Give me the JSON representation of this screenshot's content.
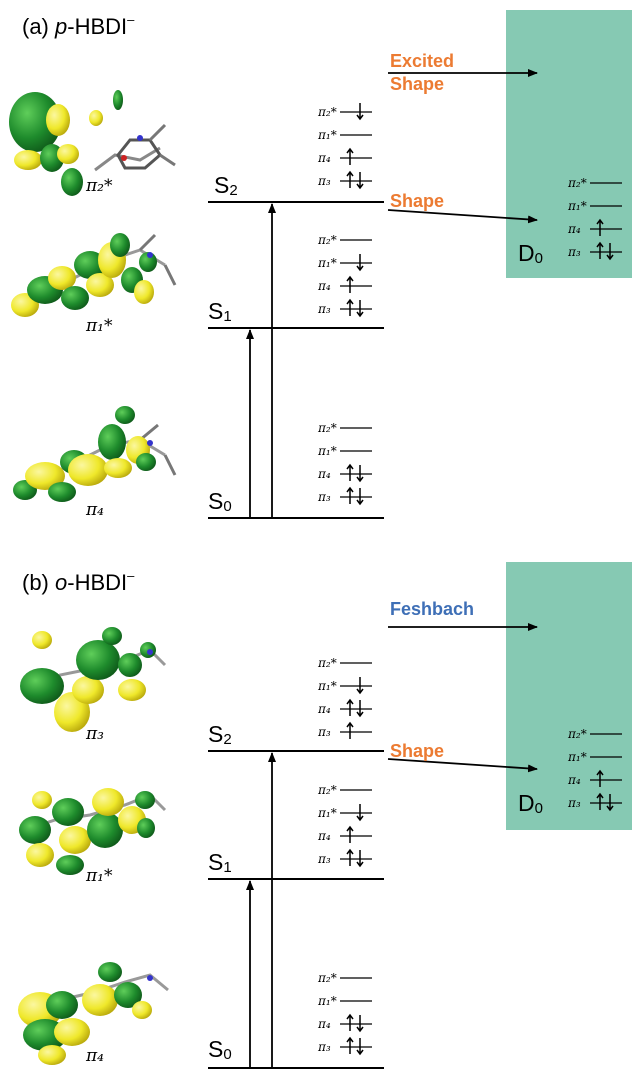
{
  "panel_a": {
    "title_prefix": "(a) ",
    "title_italic": "p",
    "title_rest": "-HBDI",
    "title_sup": "–",
    "states": {
      "s0": "S",
      "s0_sub": "0",
      "s1": "S",
      "s1_sub": "1",
      "s2": "S",
      "s2_sub": "2",
      "d0": "D",
      "d0_sub": "0"
    },
    "processes": {
      "excited_shape_line1": "Excited",
      "excited_shape_line2": "Shape",
      "shape": "Shape"
    },
    "orbital_labels": {
      "top": "π₂*",
      "mid": "π₁*",
      "bottom": "π₄"
    }
  },
  "panel_b": {
    "title_prefix": "(b) ",
    "title_italic": "o",
    "title_rest": "-HBDI",
    "title_sup": "–",
    "states": {
      "s0": "S",
      "s0_sub": "0",
      "s1": "S",
      "s1_sub": "1",
      "s2": "S",
      "s2_sub": "2",
      "d0": "D",
      "d0_sub": "0"
    },
    "processes": {
      "feshbach": "Feshbach",
      "shape": "Shape"
    },
    "orbital_labels": {
      "top": "π₃",
      "mid": "π₁*",
      "bottom": "π₄"
    }
  },
  "orbital_names": [
    "π₂*",
    "π₁*",
    "π₄",
    "π₃"
  ],
  "colors": {
    "continuum": "#86C9B3",
    "shape_text": "#EC7B32",
    "feshbach_text": "#3E6FB6",
    "lobe_green": "#1E8B2C",
    "lobe_yellow": "#EFE82A"
  }
}
